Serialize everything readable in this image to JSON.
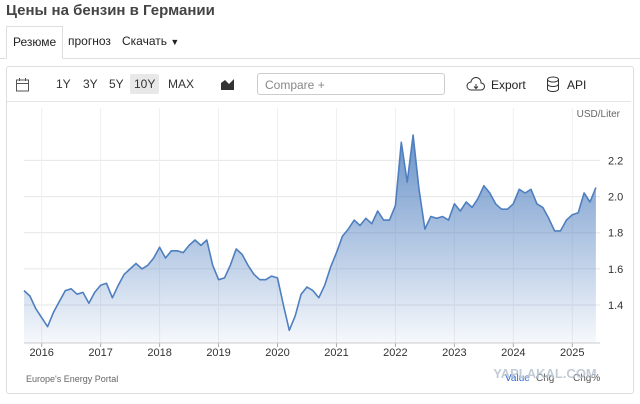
{
  "header": {
    "title": "Цены на бензин в Германии"
  },
  "tabs": [
    "Резюме",
    "прогноз",
    "Скачать"
  ],
  "toolbar": {
    "ranges": [
      "1Y",
      "3Y",
      "5Y",
      "10Y",
      "MAX"
    ],
    "compare": "Compare +",
    "export": "Export",
    "api": "API"
  },
  "chart_data": {
    "type": "line",
    "unit": "USD/Liter",
    "color": "#4f7fbf",
    "grid": true,
    "x": [
      2015.7,
      2015.8,
      2015.9,
      2016.0,
      2016.1,
      2016.2,
      2016.3,
      2016.4,
      2016.5,
      2016.6,
      2016.7,
      2016.8,
      2016.9,
      2017.0,
      2017.1,
      2017.2,
      2017.3,
      2017.4,
      2017.5,
      2017.6,
      2017.7,
      2017.8,
      2017.9,
      2018.0,
      2018.1,
      2018.2,
      2018.3,
      2018.4,
      2018.5,
      2018.6,
      2018.7,
      2018.8,
      2018.9,
      2019.0,
      2019.1,
      2019.2,
      2019.3,
      2019.4,
      2019.5,
      2019.6,
      2019.7,
      2019.8,
      2019.9,
      2020.0,
      2020.1,
      2020.2,
      2020.3,
      2020.4,
      2020.5,
      2020.6,
      2020.7,
      2020.8,
      2020.9,
      2021.0,
      2021.1,
      2021.2,
      2021.3,
      2021.4,
      2021.5,
      2021.6,
      2021.7,
      2021.8,
      2021.9,
      2022.0,
      2022.1,
      2022.2,
      2022.3,
      2022.4,
      2022.5,
      2022.6,
      2022.7,
      2022.8,
      2022.9,
      2023.0,
      2023.1,
      2023.2,
      2023.3,
      2023.4,
      2023.5,
      2023.6,
      2023.7,
      2023.8,
      2023.9,
      2024.0,
      2024.1,
      2024.2,
      2024.3,
      2024.4,
      2024.5,
      2024.6,
      2024.7,
      2024.8,
      2024.9,
      2025.0,
      2025.1,
      2025.2,
      2025.3,
      2025.4
    ],
    "values": [
      1.48,
      1.45,
      1.38,
      1.33,
      1.28,
      1.36,
      1.42,
      1.48,
      1.49,
      1.46,
      1.47,
      1.41,
      1.47,
      1.51,
      1.52,
      1.44,
      1.51,
      1.57,
      1.6,
      1.63,
      1.6,
      1.62,
      1.66,
      1.72,
      1.66,
      1.7,
      1.7,
      1.69,
      1.73,
      1.76,
      1.73,
      1.76,
      1.62,
      1.54,
      1.55,
      1.62,
      1.71,
      1.68,
      1.62,
      1.57,
      1.54,
      1.54,
      1.56,
      1.55,
      1.4,
      1.26,
      1.34,
      1.46,
      1.5,
      1.48,
      1.44,
      1.51,
      1.61,
      1.69,
      1.78,
      1.82,
      1.87,
      1.84,
      1.88,
      1.85,
      1.92,
      1.87,
      1.87,
      1.95,
      2.3,
      2.08,
      2.34,
      2.04,
      1.82,
      1.89,
      1.88,
      1.89,
      1.87,
      1.96,
      1.92,
      1.97,
      1.94,
      1.99,
      2.06,
      2.02,
      1.96,
      1.93,
      1.93,
      1.96,
      2.04,
      2.02,
      2.04,
      1.96,
      1.94,
      1.88,
      1.81,
      1.81,
      1.87,
      1.9,
      1.91,
      2.02,
      1.97,
      2.05
    ],
    "xlim": [
      2015.7,
      2025.47
    ],
    "xticks": [
      2016,
      2017,
      2018,
      2019,
      2020,
      2021,
      2022,
      2023,
      2024,
      2025
    ],
    "ylim": [
      1.19,
      2.49
    ],
    "yticks": [
      1.4,
      1.6,
      1.8,
      {
        "value": 2,
        "label": "2.0"
      },
      2.2
    ]
  },
  "footer": {
    "source": "Europe's Energy Portal",
    "columns": [
      "Value",
      "Chg",
      "Chg%"
    ]
  },
  "watermark": "YAPLAKAL.COM"
}
